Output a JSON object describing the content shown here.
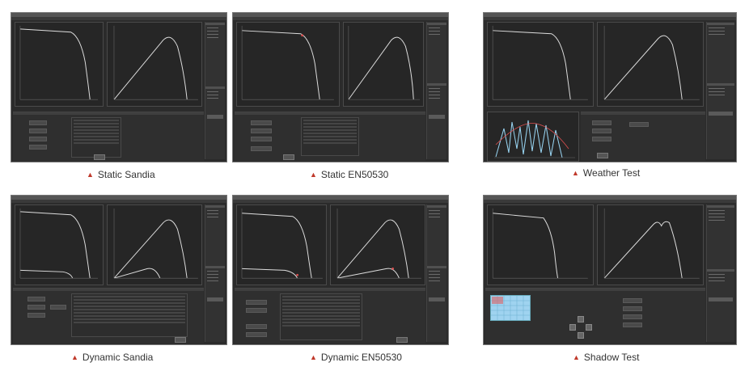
{
  "accent_color": "#c0392b",
  "caption_icon": "triangle-up-icon",
  "panels": [
    {
      "caption": "Static Sandia"
    },
    {
      "caption": "Static EN50530"
    },
    {
      "caption": "Weather Test"
    },
    {
      "caption": "Dynamic Sandia"
    },
    {
      "caption": "Dynamic EN50530"
    },
    {
      "caption": "Shadow Test"
    }
  ]
}
